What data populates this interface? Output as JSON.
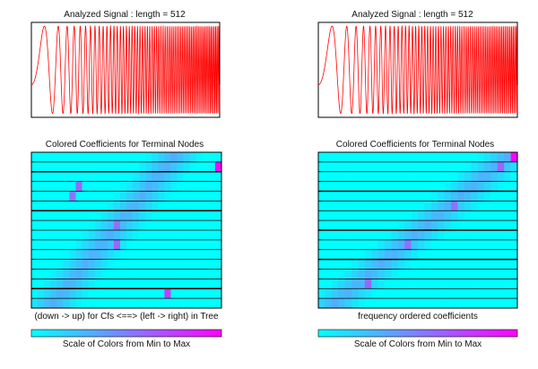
{
  "colors": {
    "signal": "#ff0000",
    "frame": "#000000",
    "colormap_min": "#00ffff",
    "colormap_max": "#ff00ff",
    "background": "#ffffff"
  },
  "chart_data": [
    {
      "type": "line",
      "id": "signal-left",
      "title": "Analyzed Signal : length = 512",
      "description_series": "linear chirp, amplitude roughly constant, frequency increasing with time",
      "x": [
        1,
        512
      ],
      "ylim": [
        -1,
        1
      ],
      "series": [
        {
          "name": "signal",
          "length": 512
        }
      ]
    },
    {
      "type": "heatmap",
      "id": "coefs-left",
      "title": "Colored Coefficients for Terminal Nodes",
      "xlabel": "(down -> up) for Cfs <==> (left -> right) in Tree",
      "rows": 16,
      "cols": 30,
      "heavy_row_lines": [
        2,
        6,
        14
      ],
      "hot_spots": [
        {
          "row": 14,
          "col": 29,
          "value": 1.0
        },
        {
          "row": 1,
          "col": 21,
          "value": 0.75
        },
        {
          "row": 6,
          "col": 13,
          "value": 0.6
        },
        {
          "row": 8,
          "col": 13,
          "value": 0.55
        },
        {
          "row": 11,
          "col": 6,
          "value": 0.55
        },
        {
          "row": 12,
          "col": 7,
          "value": 0.6
        }
      ]
    },
    {
      "type": "line",
      "id": "signal-right",
      "title": "Analyzed Signal : length = 512",
      "x": [
        1,
        512
      ],
      "ylim": [
        -1,
        1
      ],
      "series": [
        {
          "name": "signal",
          "length": 512
        }
      ]
    },
    {
      "type": "heatmap",
      "id": "coefs-right",
      "title": "Colored Coefficients for Terminal Nodes",
      "xlabel": "frequency ordered coefficients",
      "rows": 16,
      "cols": 30,
      "heavy_row_lines": [
        4,
        8,
        11
      ],
      "hot_spots": [
        {
          "row": 15,
          "col": 29,
          "value": 1.0
        },
        {
          "row": 14,
          "col": 27,
          "value": 0.6
        },
        {
          "row": 10,
          "col": 20,
          "value": 0.55
        },
        {
          "row": 6,
          "col": 13,
          "value": 0.55
        },
        {
          "row": 2,
          "col": 7,
          "value": 0.6
        }
      ]
    }
  ],
  "colorbars": [
    {
      "label": "Scale of Colors from Min to Max"
    },
    {
      "label": "Scale of Colors from Min to Max"
    }
  ]
}
